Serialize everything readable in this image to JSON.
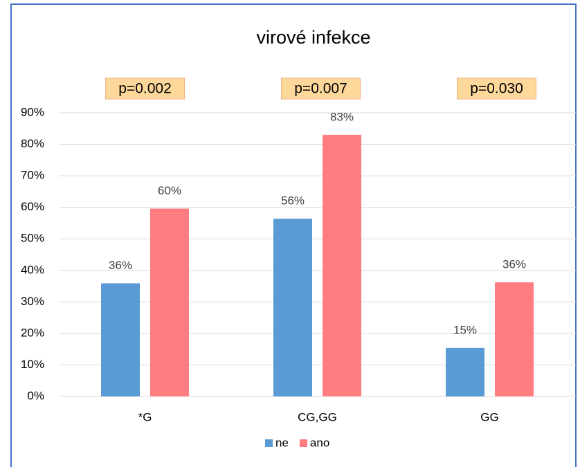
{
  "chart_data": {
    "type": "bar",
    "title": "virové infekce",
    "annotations": [
      "p=0.002",
      "p=0.007",
      "p=0.030"
    ],
    "categories": [
      "*G",
      "CG,GG",
      "GG"
    ],
    "series": [
      {
        "name": "ne",
        "color": "#5b9bd5",
        "values": [
          35.9,
          56.4,
          15.4
        ],
        "value_labels": [
          "36%",
          "56%",
          "15%"
        ]
      },
      {
        "name": "ano",
        "color": "#ff7c80",
        "values": [
          59.6,
          83.0,
          36.2
        ],
        "value_labels": [
          "60%",
          "83%",
          "36%"
        ]
      }
    ],
    "ylim": [
      0,
      90
    ],
    "yticks": [
      {
        "value": 0,
        "label": "0%"
      },
      {
        "value": 10,
        "label": "10%"
      },
      {
        "value": 20,
        "label": "20%"
      },
      {
        "value": 30,
        "label": "30%"
      },
      {
        "value": 40,
        "label": "40%"
      },
      {
        "value": 50,
        "label": "50%"
      },
      {
        "value": 60,
        "label": "60%"
      },
      {
        "value": 70,
        "label": "70%"
      },
      {
        "value": 80,
        "label": "80%"
      },
      {
        "value": 90,
        "label": "90%"
      }
    ],
    "grid": true,
    "legend": "bottom"
  }
}
